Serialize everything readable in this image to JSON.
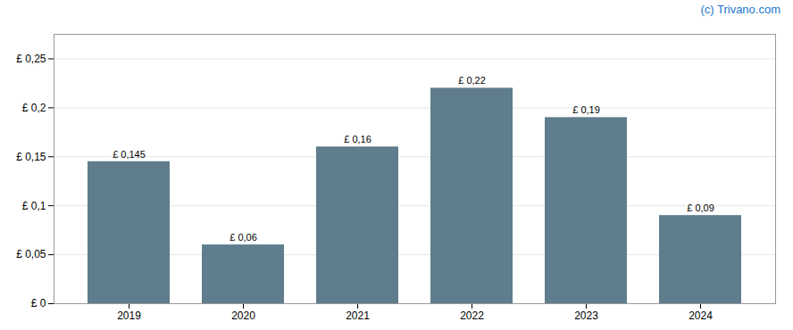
{
  "chart_data": {
    "type": "bar",
    "categories": [
      "2019",
      "2020",
      "2021",
      "2022",
      "2023",
      "2024"
    ],
    "values": [
      0.145,
      0.06,
      0.16,
      0.22,
      0.19,
      0.09
    ],
    "value_labels": [
      "£ 0,145",
      "£ 0,06",
      "£ 0,16",
      "£ 0,22",
      "£ 0,19",
      "£ 0,09"
    ],
    "data_labels": true,
    "color": "#5f7d8c",
    "ylim": [
      0,
      0.275
    ],
    "yticks": [
      {
        "value": 0,
        "label": "£ 0"
      },
      {
        "value": 0.05,
        "label": "£ 0,05"
      },
      {
        "value": 0.1,
        "label": "£ 0,1"
      },
      {
        "value": 0.15,
        "label": "£ 0,15"
      },
      {
        "value": 0.2,
        "label": "£ 0,2"
      },
      {
        "value": 0.25,
        "label": "£ 0,25"
      }
    ],
    "grid": true,
    "annotations": [
      "(c) Trivano.com"
    ]
  }
}
